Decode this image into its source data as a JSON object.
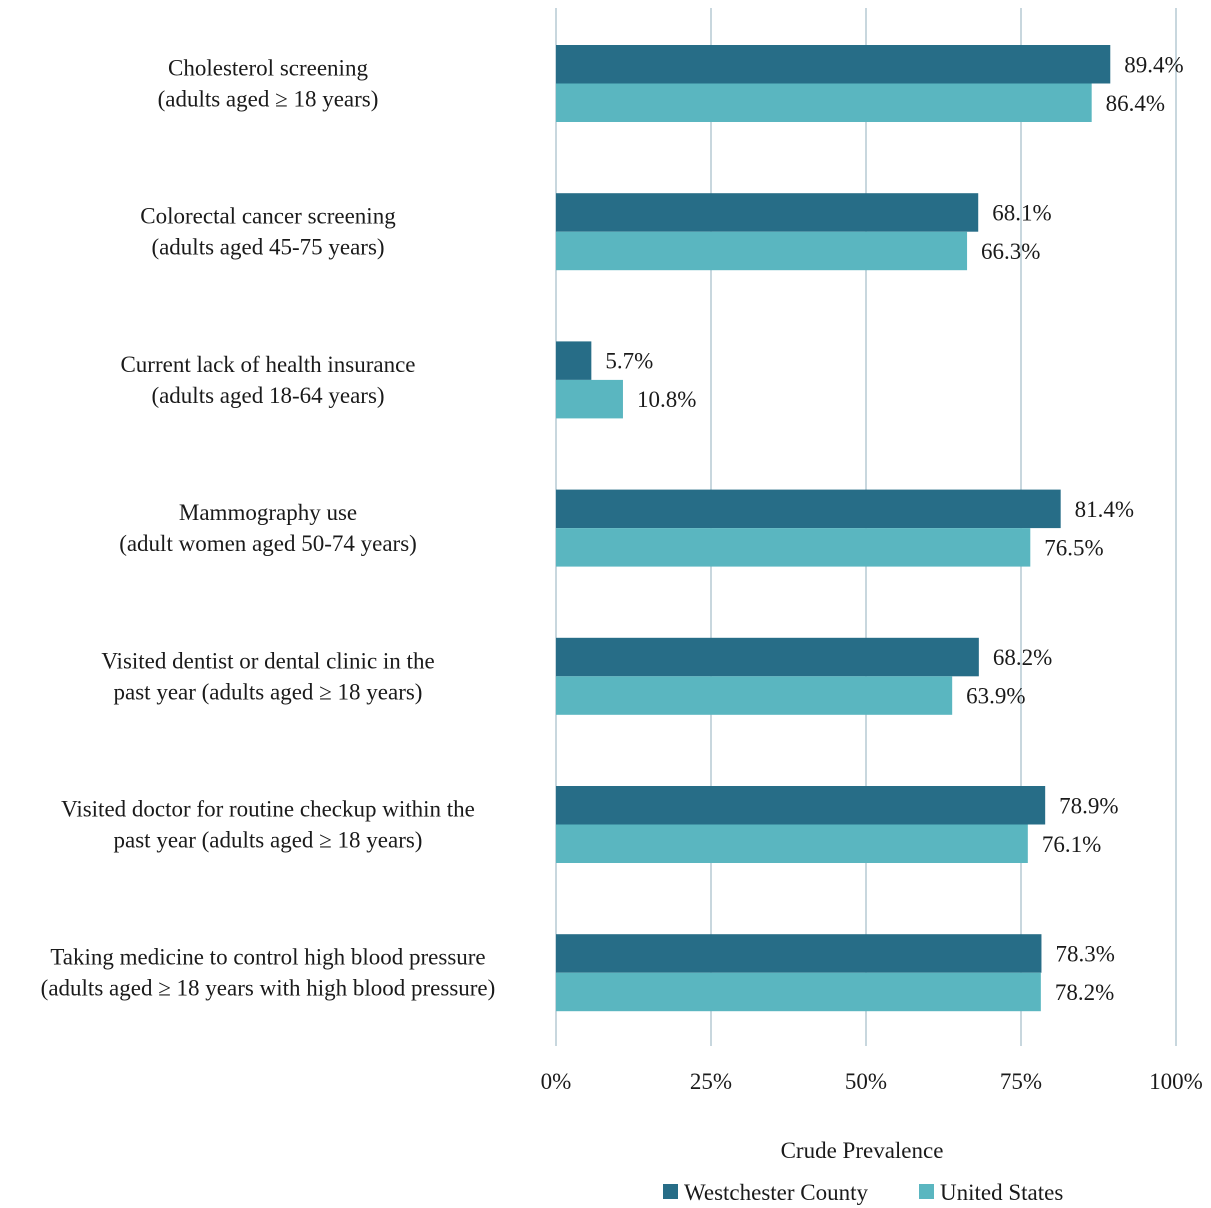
{
  "chart_data": {
    "type": "bar",
    "orientation": "horizontal",
    "categories": [
      [
        "Cholesterol screening",
        "(adults aged ≥ 18 years)"
      ],
      [
        "Colorectal cancer screening",
        "(adults aged 45-75 years)"
      ],
      [
        "Current lack of health insurance",
        "(adults aged 18-64 years)"
      ],
      [
        "Mammography use",
        "(adult women aged 50-74 years)"
      ],
      [
        "Visited dentist or dental clinic in the",
        "past year (adults aged ≥ 18 years)"
      ],
      [
        "Visited doctor for routine checkup within the",
        "past year (adults aged ≥ 18 years)"
      ],
      [
        "Taking medicine to control high blood pressure",
        "(adults aged ≥ 18 years with high blood pressure)"
      ]
    ],
    "series": [
      {
        "name": "Westchester County",
        "color": "#276d87",
        "values": [
          89.4,
          68.1,
          5.7,
          81.4,
          68.2,
          78.9,
          78.3
        ],
        "labels": [
          "89.4%",
          "68.1%",
          "5.7%",
          "81.4%",
          "68.2%",
          "78.9%",
          "78.3%"
        ]
      },
      {
        "name": "United States",
        "color": "#5ab6c0",
        "values": [
          86.4,
          66.3,
          10.8,
          76.5,
          63.9,
          76.1,
          78.2
        ],
        "labels": [
          "86.4%",
          "66.3%",
          "10.8%",
          "76.5%",
          "63.9%",
          "76.1%",
          "78.2%"
        ]
      }
    ],
    "xlabel": "Crude Prevalence",
    "xlim": [
      0,
      100
    ],
    "xticks": [
      "0%",
      "25%",
      "50%",
      "75%",
      "100%"
    ],
    "grid": "vertical",
    "gridColor": "#c8d7de",
    "legend_position": "bottom"
  }
}
